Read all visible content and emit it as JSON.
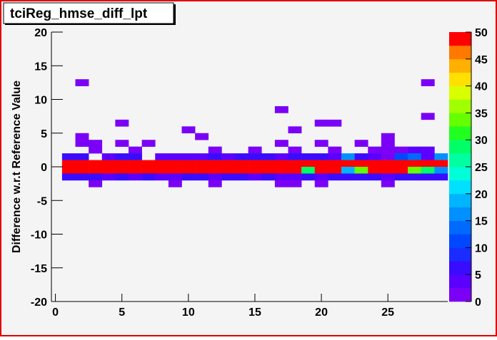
{
  "chart_data": {
    "type": "heatmap",
    "title": "tciReg_hmse_diff_lpt",
    "y_label": "Difference w.r.t Reference Value",
    "xlim": [
      -0.3,
      29.5
    ],
    "ylim": [
      -20,
      20
    ],
    "xticks": [
      0,
      5,
      10,
      15,
      20,
      25
    ],
    "yticks": [
      -20,
      -15,
      -10,
      -5,
      0,
      5,
      10,
      15,
      20
    ],
    "zlim": [
      0,
      50
    ],
    "zticks": [
      0,
      5,
      10,
      15,
      20,
      25,
      30,
      35,
      40,
      45,
      50
    ],
    "palette": [
      "#7b00f6",
      "#5b00ff",
      "#3a0cff",
      "#1a2cff",
      "#0048ff",
      "#006aff",
      "#0090ff",
      "#00b4ff",
      "#00e0ff",
      "#00ffd8",
      "#00ffa0",
      "#00ff66",
      "#20ff20",
      "#66ff00",
      "#a0ff00",
      "#d8ff00",
      "#ffe000",
      "#ffb000",
      "#ff7800",
      "#ff0000"
    ],
    "cells": [
      [
        2,
        12,
        2
      ],
      [
        28,
        12,
        2
      ],
      [
        17,
        8,
        2
      ],
      [
        28,
        7,
        2
      ],
      [
        5,
        6,
        2
      ],
      [
        20,
        6,
        2
      ],
      [
        21,
        6,
        2
      ],
      [
        10,
        5,
        2
      ],
      [
        18,
        5,
        2
      ],
      [
        2,
        4,
        2
      ],
      [
        11,
        4,
        2
      ],
      [
        25,
        4,
        2
      ],
      [
        2,
        3,
        2
      ],
      [
        3,
        3,
        2
      ],
      [
        5,
        3,
        2
      ],
      [
        7,
        3,
        2
      ],
      [
        17,
        3,
        2
      ],
      [
        20,
        3,
        2
      ],
      [
        23,
        3,
        2
      ],
      [
        25,
        3,
        2
      ],
      [
        3,
        2,
        2
      ],
      [
        6,
        2,
        2
      ],
      [
        12,
        2,
        2
      ],
      [
        15,
        2,
        2
      ],
      [
        18,
        2,
        2
      ],
      [
        21,
        2,
        2
      ],
      [
        24,
        2,
        2
      ],
      [
        25,
        2,
        2
      ],
      [
        26,
        2,
        2
      ],
      [
        27,
        2,
        4
      ],
      [
        28,
        2,
        4
      ],
      [
        1,
        1,
        7
      ],
      [
        2,
        1,
        7
      ],
      [
        4,
        1,
        3
      ],
      [
        5,
        1,
        5
      ],
      [
        6,
        1,
        7
      ],
      [
        8,
        1,
        3
      ],
      [
        9,
        1,
        3
      ],
      [
        10,
        1,
        3
      ],
      [
        11,
        1,
        3
      ],
      [
        12,
        1,
        5
      ],
      [
        13,
        1,
        3
      ],
      [
        14,
        1,
        7
      ],
      [
        15,
        1,
        5
      ],
      [
        16,
        1,
        7
      ],
      [
        17,
        1,
        3
      ],
      [
        18,
        1,
        5
      ],
      [
        19,
        1,
        7
      ],
      [
        20,
        1,
        5
      ],
      [
        21,
        1,
        3
      ],
      [
        22,
        1,
        15
      ],
      [
        23,
        1,
        5
      ],
      [
        24,
        1,
        3
      ],
      [
        25,
        1,
        2
      ],
      [
        26,
        1,
        12
      ],
      [
        27,
        1,
        14
      ],
      [
        28,
        1,
        3
      ],
      [
        29,
        1,
        15
      ],
      [
        1,
        0,
        50
      ],
      [
        2,
        0,
        50
      ],
      [
        3,
        0,
        50
      ],
      [
        4,
        0,
        50
      ],
      [
        5,
        0,
        50
      ],
      [
        6,
        0,
        50
      ],
      [
        7,
        0,
        50
      ],
      [
        8,
        0,
        50
      ],
      [
        9,
        0,
        50
      ],
      [
        10,
        0,
        50
      ],
      [
        11,
        0,
        50
      ],
      [
        12,
        0,
        50
      ],
      [
        13,
        0,
        50
      ],
      [
        14,
        0,
        50
      ],
      [
        15,
        0,
        50
      ],
      [
        16,
        0,
        50
      ],
      [
        17,
        0,
        50
      ],
      [
        18,
        0,
        50
      ],
      [
        19,
        0,
        50
      ],
      [
        20,
        0,
        50
      ],
      [
        21,
        0,
        50
      ],
      [
        22,
        0,
        50
      ],
      [
        23,
        0,
        50
      ],
      [
        24,
        0,
        50
      ],
      [
        25,
        0,
        50
      ],
      [
        26,
        0,
        50
      ],
      [
        27,
        0,
        50
      ],
      [
        28,
        0,
        50
      ],
      [
        29,
        0,
        50
      ],
      [
        1,
        -1,
        50
      ],
      [
        2,
        -1,
        50
      ],
      [
        3,
        -1,
        50
      ],
      [
        4,
        -1,
        50
      ],
      [
        5,
        -1,
        50
      ],
      [
        6,
        -1,
        50
      ],
      [
        7,
        -1,
        50
      ],
      [
        8,
        -1,
        50
      ],
      [
        9,
        -1,
        50
      ],
      [
        10,
        -1,
        50
      ],
      [
        11,
        -1,
        50
      ],
      [
        12,
        -1,
        50
      ],
      [
        13,
        -1,
        50
      ],
      [
        14,
        -1,
        50
      ],
      [
        15,
        -1,
        50
      ],
      [
        16,
        -1,
        50
      ],
      [
        17,
        -1,
        50
      ],
      [
        18,
        -1,
        50
      ],
      [
        19,
        -1,
        28
      ],
      [
        20,
        -1,
        50
      ],
      [
        21,
        -1,
        50
      ],
      [
        22,
        -1,
        18
      ],
      [
        23,
        -1,
        33
      ],
      [
        24,
        -1,
        50
      ],
      [
        25,
        -1,
        50
      ],
      [
        26,
        -1,
        50
      ],
      [
        27,
        -1,
        33
      ],
      [
        28,
        -1,
        28
      ],
      [
        29,
        -1,
        16
      ],
      [
        1,
        -2,
        5
      ],
      [
        2,
        -2,
        5
      ],
      [
        3,
        -2,
        5
      ],
      [
        4,
        -2,
        3
      ],
      [
        5,
        -2,
        5
      ],
      [
        6,
        -2,
        3
      ],
      [
        7,
        -2,
        5
      ],
      [
        8,
        -2,
        3
      ],
      [
        9,
        -2,
        3
      ],
      [
        10,
        -2,
        5
      ],
      [
        11,
        -2,
        5
      ],
      [
        12,
        -2,
        3
      ],
      [
        13,
        -2,
        5
      ],
      [
        14,
        -2,
        5
      ],
      [
        15,
        -2,
        3
      ],
      [
        16,
        -2,
        5
      ],
      [
        17,
        -2,
        3
      ],
      [
        18,
        -2,
        3
      ],
      [
        19,
        -2,
        5
      ],
      [
        20,
        -2,
        3
      ],
      [
        21,
        -2,
        5
      ],
      [
        22,
        -2,
        5
      ],
      [
        23,
        -2,
        5
      ],
      [
        24,
        -2,
        5
      ],
      [
        25,
        -2,
        3
      ],
      [
        26,
        -2,
        5
      ],
      [
        27,
        -2,
        5
      ],
      [
        28,
        -2,
        5
      ],
      [
        29,
        -2,
        5
      ],
      [
        3,
        -3,
        2
      ],
      [
        9,
        -3,
        2
      ],
      [
        12,
        -3,
        2
      ],
      [
        17,
        -3,
        2
      ],
      [
        18,
        -3,
        2
      ],
      [
        20,
        -3,
        2
      ],
      [
        25,
        -3,
        2
      ]
    ]
  }
}
